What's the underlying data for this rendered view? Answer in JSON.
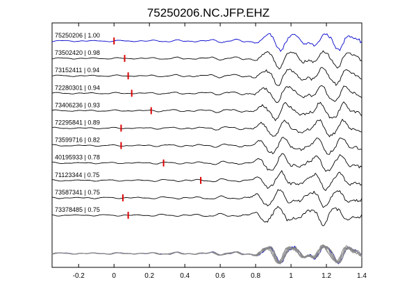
{
  "chart_data": {
    "type": "line",
    "title": "75250206.NC.JFP.EHZ",
    "xlabel": "",
    "ylabel": "",
    "xlim": [
      -0.35,
      1.4
    ],
    "x_ticks": [
      -0.2,
      0,
      0.2,
      0.4,
      0.6,
      0.8,
      1,
      1.2,
      1.4
    ],
    "x_tick_labels": [
      "-0.2",
      "0",
      "0.2",
      "0.4",
      "0.6",
      "0.8",
      "1",
      "1.2",
      "1.4"
    ],
    "grid": false,
    "colors": {
      "reference": "#0000cc",
      "trace": "#000000",
      "pick": "#dd0000",
      "stack": "#888888"
    },
    "series": [
      {
        "label": "75250206 | 1.00",
        "pick_time": 0.0,
        "color": "#0000cc"
      },
      {
        "label": "73502420 | 0.98",
        "pick_time": 0.06,
        "color": "#000000"
      },
      {
        "label": "73152411 | 0.94",
        "pick_time": 0.08,
        "color": "#000000"
      },
      {
        "label": "72280301 | 0.94",
        "pick_time": 0.1,
        "color": "#000000"
      },
      {
        "label": "73406236 | 0.93",
        "pick_time": 0.21,
        "color": "#000000"
      },
      {
        "label": "72295841 | 0.89",
        "pick_time": 0.04,
        "color": "#000000"
      },
      {
        "label": "73599716 | 0.82",
        "pick_time": 0.04,
        "color": "#000000"
      },
      {
        "label": "40195933 | 0.78",
        "pick_time": 0.28,
        "color": "#000000"
      },
      {
        "label": "71123344 | 0.75",
        "pick_time": 0.49,
        "color": "#000000"
      },
      {
        "label": "73587341 | 0.75",
        "pick_time": 0.05,
        "color": "#000000"
      },
      {
        "label": "73378485 | 0.75",
        "pick_time": 0.08,
        "color": "#000000"
      }
    ],
    "stack_trace": true
  }
}
